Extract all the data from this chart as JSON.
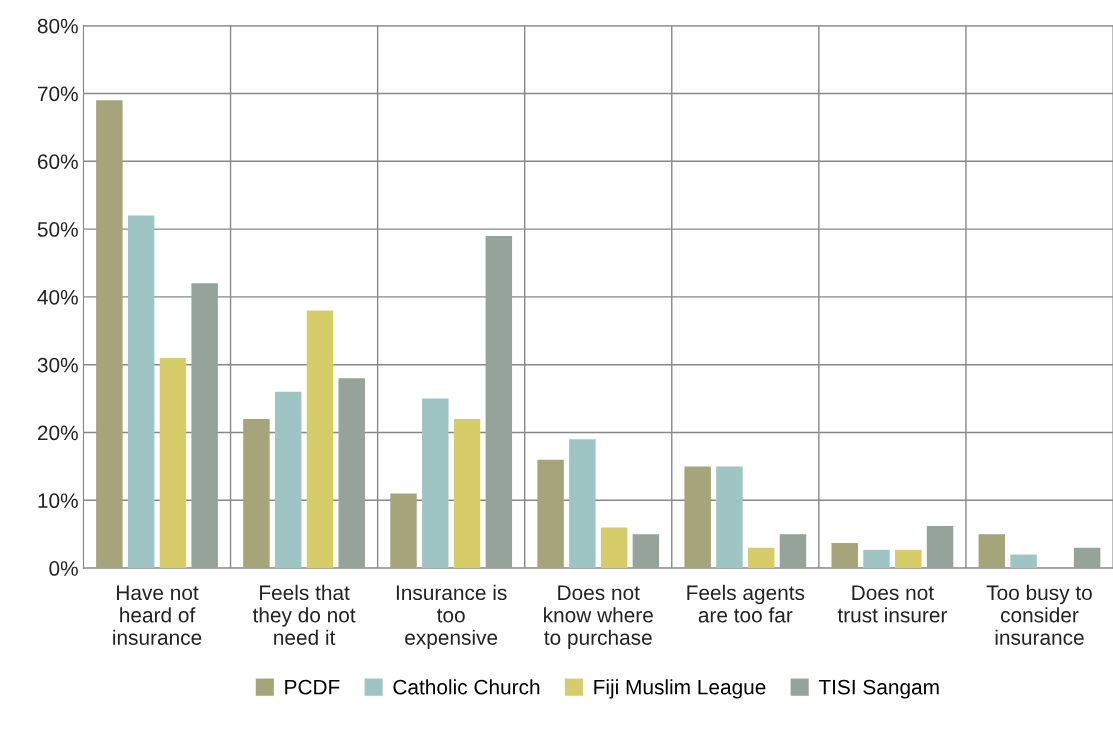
{
  "chart_data": {
    "type": "bar",
    "categories": [
      "Have not\nheard of\ninsurance",
      "Feels that\nthey do not\nneed it",
      "Insurance is\ntoo\nexpensive",
      "Does not\nknow where\nto purchase",
      "Feels agents\nare too far",
      "Does not\ntrust insurer",
      "Too busy to\nconsider\ninsurance"
    ],
    "series": [
      {
        "name": "PCDF",
        "color": "#a6a47a",
        "values": [
          69,
          22,
          11,
          16,
          15,
          3.7,
          5
        ]
      },
      {
        "name": "Catholic Church",
        "color": "#9ec4c4",
        "values": [
          52,
          26,
          25,
          19,
          15,
          2.7,
          2
        ]
      },
      {
        "name": "Fiji Muslim League",
        "color": "#d6cd6a",
        "values": [
          31,
          38,
          22,
          6,
          3,
          2.7,
          0
        ]
      },
      {
        "name": "TISI Sangam",
        "color": "#95a39b",
        "values": [
          42,
          28,
          49,
          5,
          5,
          6.2,
          3
        ]
      }
    ],
    "ylim": [
      0,
      80
    ],
    "yticks": [
      {
        "value": 0,
        "label": "0%"
      },
      {
        "value": 10,
        "label": "10%"
      },
      {
        "value": 20,
        "label": "20%"
      },
      {
        "value": 30,
        "label": "30%"
      },
      {
        "value": 40,
        "label": "40%"
      },
      {
        "value": 50,
        "label": "50%"
      },
      {
        "value": 60,
        "label": "60%"
      },
      {
        "value": 70,
        "label": "70%"
      },
      {
        "value": 80,
        "label": "80%"
      }
    ],
    "grid": true,
    "legend": "bottom"
  }
}
